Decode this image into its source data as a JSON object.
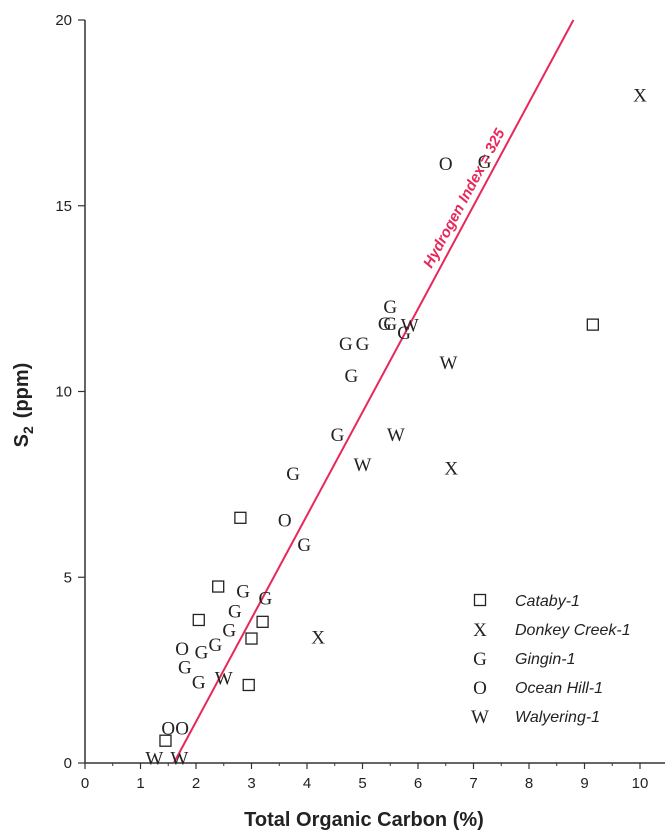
{
  "chart_data": {
    "type": "scatter",
    "xlabel": "Total Organic Carbon (%)",
    "ylabel_main": "S",
    "ylabel_sub": "2",
    "ylabel_unit": "(ppm)",
    "xlim": [
      0,
      10.5
    ],
    "ylim": [
      0,
      20
    ],
    "x_ticks": [
      0,
      1,
      2,
      3,
      4,
      5,
      6,
      7,
      8,
      9,
      10
    ],
    "y_ticks": [
      0,
      5,
      10,
      15,
      20
    ],
    "line": {
      "label": "Hydrogen Index = 325",
      "color": "#e8285a",
      "x": [
        1.6,
        8.8
      ],
      "y": [
        0,
        20
      ]
    },
    "legend_position": "bottom-right",
    "series": [
      {
        "name": "Cataby-1",
        "marker": "square",
        "points": [
          [
            1.45,
            0.6
          ],
          [
            2.05,
            3.85
          ],
          [
            2.4,
            4.75
          ],
          [
            2.8,
            6.6
          ],
          [
            2.95,
            2.1
          ],
          [
            3.0,
            3.35
          ],
          [
            3.2,
            3.8
          ],
          [
            9.15,
            11.8
          ]
        ]
      },
      {
        "name": "Donkey Creek-1",
        "marker": "X",
        "points": [
          [
            4.2,
            3.4
          ],
          [
            6.6,
            7.95
          ],
          [
            10.0,
            18.0
          ]
        ]
      },
      {
        "name": "Gingin-1",
        "marker": "G",
        "points": [
          [
            1.8,
            2.6
          ],
          [
            2.05,
            2.2
          ],
          [
            2.1,
            3.0
          ],
          [
            2.35,
            3.2
          ],
          [
            2.6,
            3.6
          ],
          [
            2.7,
            4.1
          ],
          [
            2.85,
            4.65
          ],
          [
            3.25,
            4.45
          ],
          [
            3.75,
            7.8
          ],
          [
            3.95,
            5.9
          ],
          [
            4.55,
            8.85
          ],
          [
            4.7,
            11.3
          ],
          [
            4.8,
            10.45
          ],
          [
            5.0,
            11.3
          ],
          [
            5.4,
            11.85
          ],
          [
            5.5,
            12.3
          ],
          [
            5.5,
            11.85
          ],
          [
            5.75,
            11.6
          ],
          [
            7.2,
            16.2
          ]
        ]
      },
      {
        "name": "Ocean Hill-1",
        "marker": "O",
        "points": [
          [
            1.5,
            0.95
          ],
          [
            1.75,
            0.95
          ],
          [
            1.75,
            3.1
          ],
          [
            3.6,
            6.55
          ],
          [
            6.5,
            16.15
          ]
        ]
      },
      {
        "name": "Walyering-1",
        "marker": "W",
        "points": [
          [
            1.25,
            0.15
          ],
          [
            1.7,
            0.15
          ],
          [
            2.5,
            2.3
          ],
          [
            5.0,
            8.05
          ],
          [
            5.6,
            8.85
          ],
          [
            5.85,
            11.8
          ],
          [
            6.55,
            10.8
          ]
        ]
      }
    ]
  }
}
